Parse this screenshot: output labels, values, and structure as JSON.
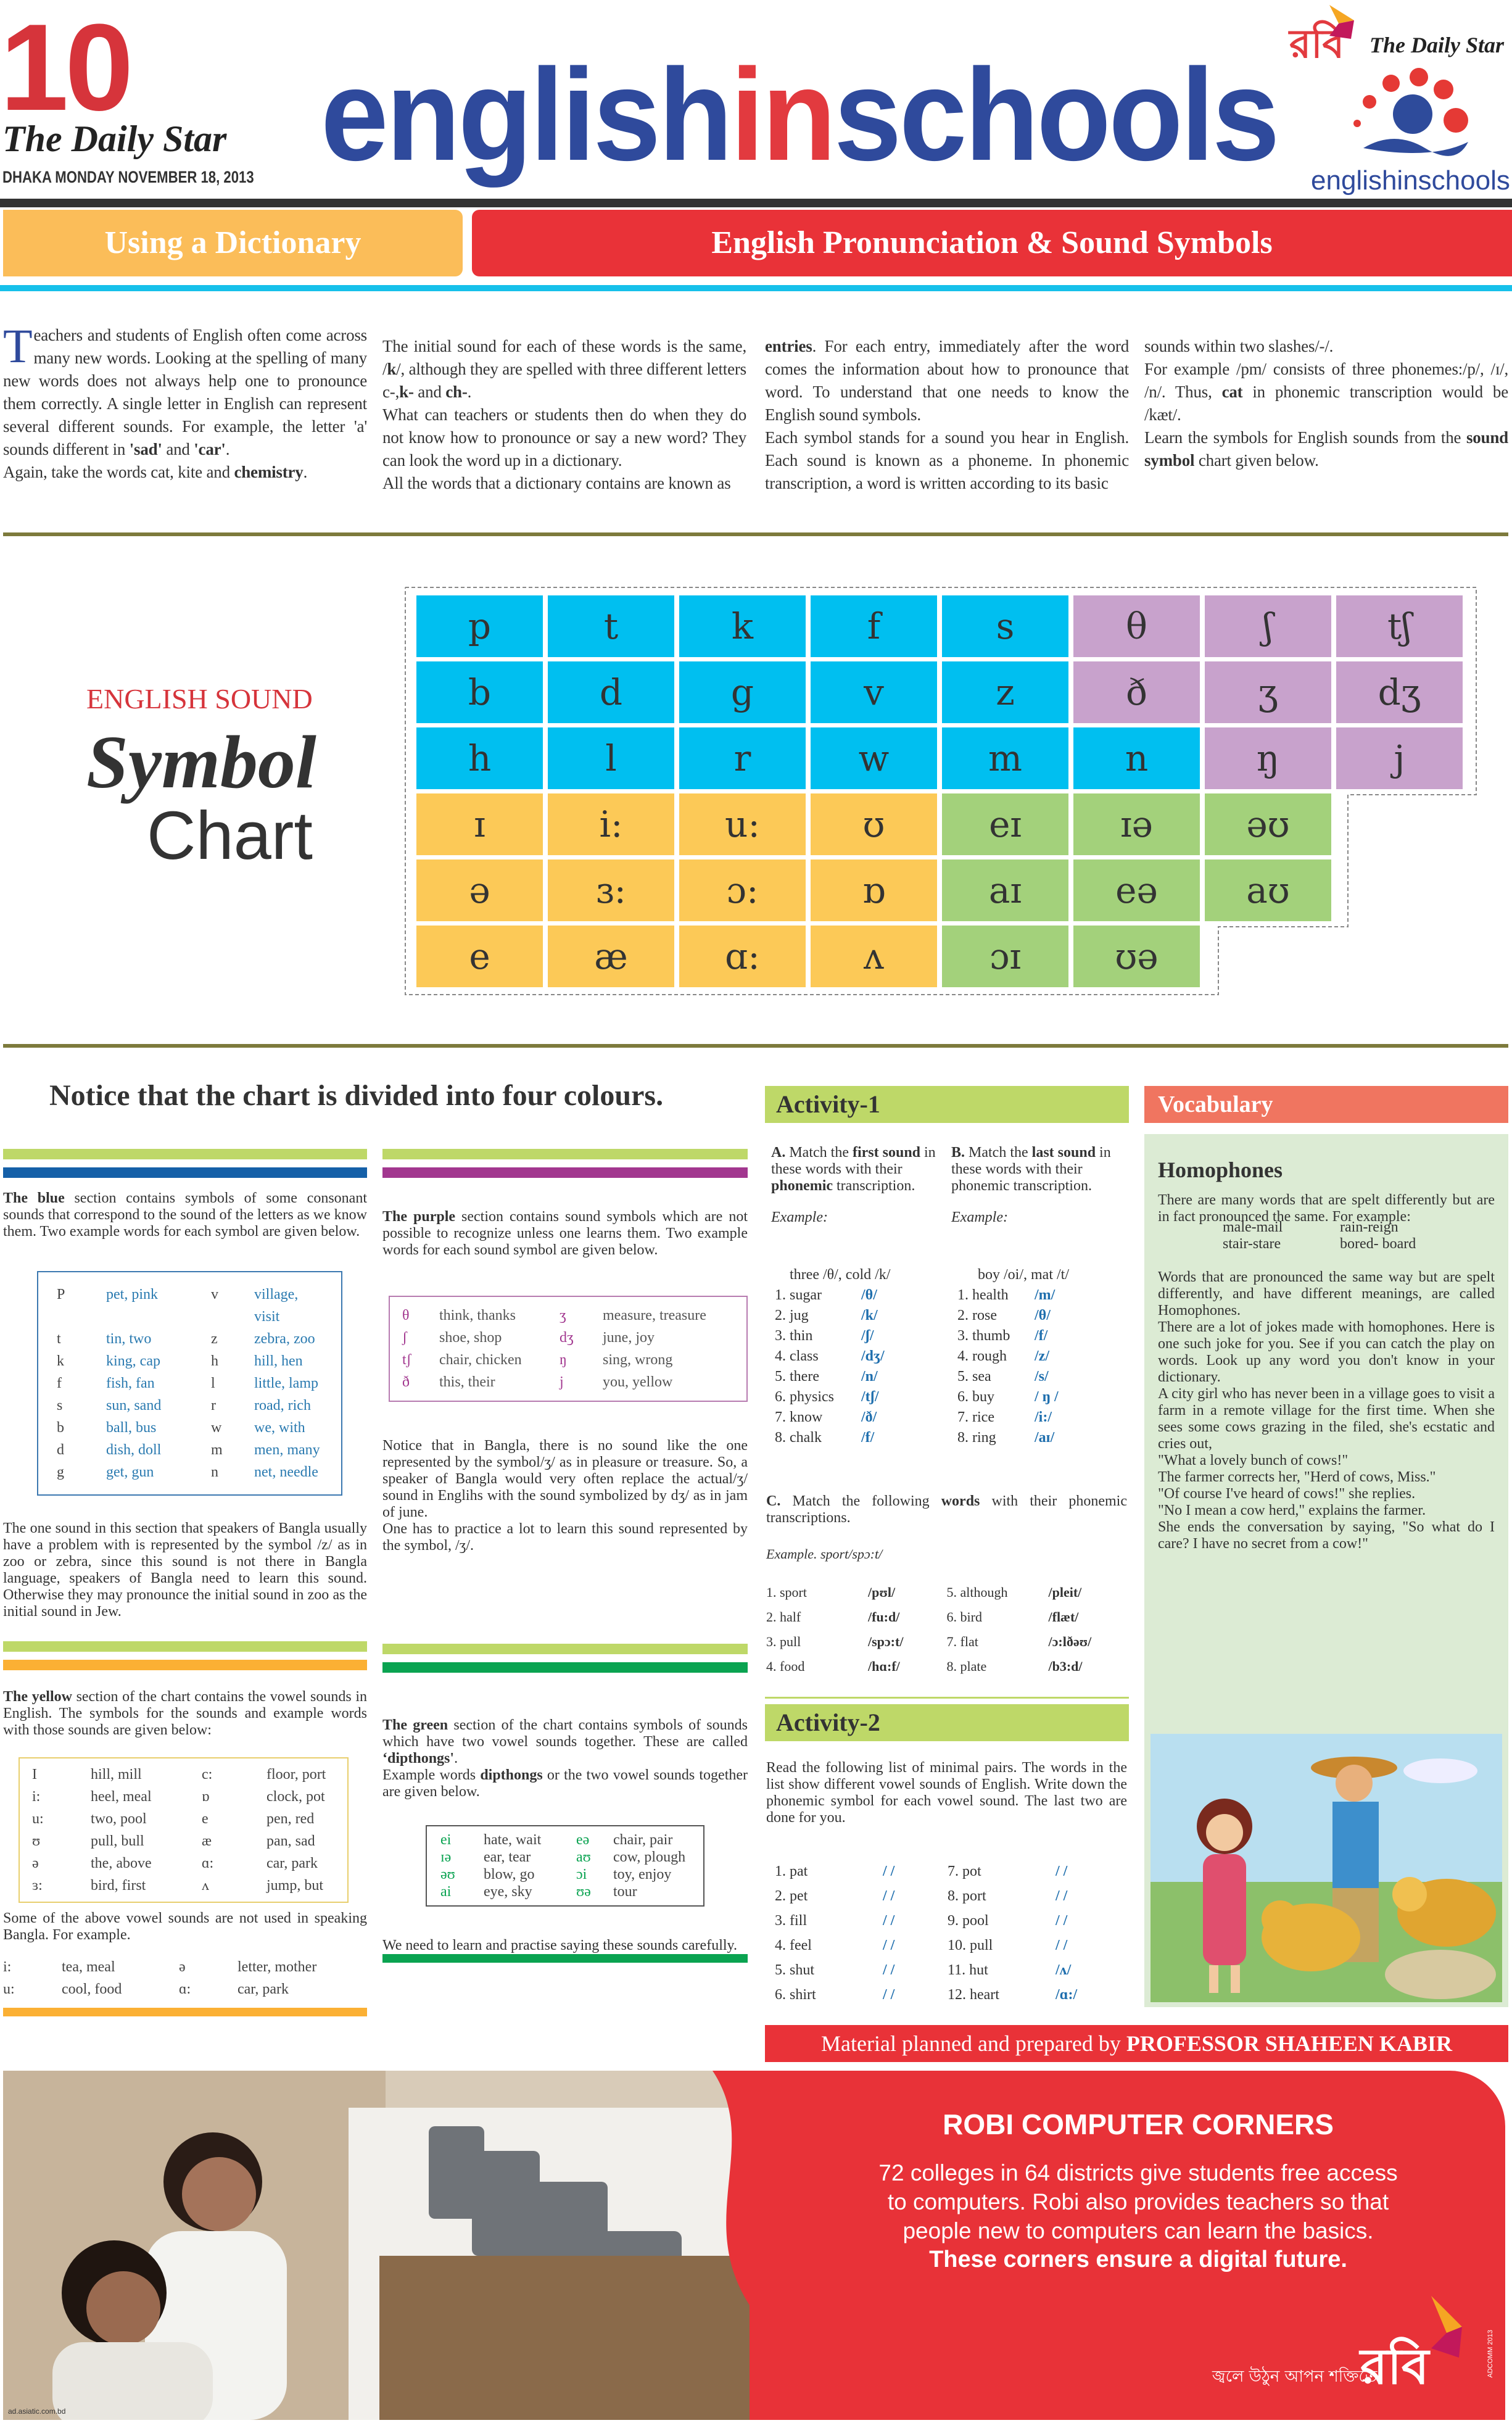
{
  "masthead": {
    "page_number": "10",
    "paper_name": "The Daily Star",
    "dateline": "DHAKA MONDAY NOVEMBER 18, 2013",
    "title_part1": "english",
    "title_part2": "in",
    "title_part3": "schools",
    "right_logo": {
      "robi": "রবি",
      "paper": "The Daily Star",
      "brand": "englishinschools"
    }
  },
  "headers": {
    "left": "Using a Dictionary",
    "right": "English Pronunciation & Sound  Symbols"
  },
  "intro": {
    "dropcap": "T",
    "columns": [
      [
        [
          {
            "t": "eachers and students of English often come across many new words. Looking at the spelling of many new words does not always help one to pronounce them correctly. A single letter in English can represent several different sounds. For example, the letter 'a' sounds different in "
          },
          {
            "t": "'sad'",
            "b": true
          },
          {
            "t": " and "
          },
          {
            "t": "'car'",
            "b": true
          },
          {
            "t": "."
          }
        ],
        [
          {
            "t": "Again, take the words cat, kite and "
          },
          {
            "t": "chemistry",
            "b": true
          },
          {
            "t": "."
          }
        ]
      ],
      [
        [
          {
            "t": "The initial sound for each of these words is the same, /"
          },
          {
            "t": "k",
            "b": true
          },
          {
            "t": "/, although they are spelled with three different letters c-,"
          },
          {
            "t": "k-",
            "b": true
          },
          {
            "t": " and "
          },
          {
            "t": "ch-",
            "b": true
          },
          {
            "t": "."
          }
        ],
        [
          {
            "t": "What can teachers or students then do when they do not know how to pronounce or say a new word? They can look the word up in a dictionary."
          }
        ],
        [
          {
            "t": "All the words that a dictionary contains are known as"
          }
        ]
      ],
      [
        [
          {
            "t": "entries",
            "b": true
          },
          {
            "t": ". For each entry, immediately after the word comes the information about how to pronounce that word. To understand that one needs to know the English sound symbols."
          }
        ],
        [
          {
            "t": "Each symbol stands for a sound you hear in English. Each sound is known as a phoneme. In phonemic transcription, a word is written according to its basic"
          }
        ]
      ],
      [
        [
          {
            "t": "sounds within two slashes/-/."
          }
        ],
        [
          {
            "t": "For example /pm/ consists of three phonemes:/p/, /ɪ/, /n/. Thus, "
          },
          {
            "t": "cat",
            "b": true
          },
          {
            "t": " in phonemic transcription would be /kæt/."
          }
        ],
        [
          {
            "t": "Learn the symbols for English sounds from the "
          },
          {
            "t": "sound symbol",
            "b": true
          },
          {
            "t": " chart given below."
          }
        ]
      ]
    ]
  },
  "chart": {
    "label_top": "ENGLISH SOUND",
    "label_mid": "Symbol",
    "label_bottom": "Chart",
    "colors": {
      "blue": "#00bff0",
      "purple": "#c8a2cc",
      "yellow": "#fcc957",
      "green": "#a3d17b"
    },
    "rows": [
      [
        [
          "p",
          "blue"
        ],
        [
          "t",
          "blue"
        ],
        [
          "k",
          "blue"
        ],
        [
          "f",
          "blue"
        ],
        [
          "s",
          "blue"
        ],
        [
          "θ",
          "purple"
        ],
        [
          "ʃ",
          "purple"
        ],
        [
          "tʃ",
          "purple"
        ]
      ],
      [
        [
          "b",
          "blue"
        ],
        [
          "d",
          "blue"
        ],
        [
          "g",
          "blue"
        ],
        [
          "v",
          "blue"
        ],
        [
          "z",
          "blue"
        ],
        [
          "ð",
          "purple"
        ],
        [
          "ʒ",
          "purple"
        ],
        [
          "dʒ",
          "purple"
        ]
      ],
      [
        [
          "h",
          "blue"
        ],
        [
          "l",
          "blue"
        ],
        [
          "r",
          "blue"
        ],
        [
          "w",
          "blue"
        ],
        [
          "m",
          "blue"
        ],
        [
          "n",
          "blue"
        ],
        [
          "ŋ",
          "purple"
        ],
        [
          "j",
          "purple"
        ]
      ],
      [
        [
          "ɪ",
          "yellow"
        ],
        [
          "i:",
          "yellow"
        ],
        [
          "u:",
          "yellow"
        ],
        [
          "ʊ",
          "yellow"
        ],
        [
          "eɪ",
          "green"
        ],
        [
          "ɪə",
          "green"
        ],
        [
          "əʊ",
          "green"
        ]
      ],
      [
        [
          "ə",
          "yellow"
        ],
        [
          "ɜ:",
          "yellow"
        ],
        [
          "ɔ:",
          "yellow"
        ],
        [
          "ɒ",
          "yellow"
        ],
        [
          "aɪ",
          "green"
        ],
        [
          "eə",
          "green"
        ],
        [
          "aʊ",
          "green"
        ]
      ],
      [
        [
          "e",
          "yellow"
        ],
        [
          "æ",
          "yellow"
        ],
        [
          "ɑ:",
          "yellow"
        ],
        [
          "ʌ",
          "yellow"
        ],
        [
          "ɔɪ",
          "green"
        ],
        [
          "ʊə",
          "green"
        ]
      ]
    ]
  },
  "notice_heading": "Notice that the chart is divided into four colours.",
  "blue_section": {
    "color": "#1560a8",
    "intro": [
      {
        "t": "The blue",
        "b": true
      },
      {
        "t": " section contains symbols of some consonant sounds that correspond to the sound of the letters as we know them. Two example words for each symbol are given below."
      }
    ],
    "table": [
      [
        "P",
        "pet, pink",
        "v",
        "village, visit"
      ],
      [
        "t",
        "tin, two",
        "z",
        "zebra, zoo"
      ],
      [
        "k",
        "king, cap",
        "h",
        "hill, hen"
      ],
      [
        "f",
        "fish, fan",
        "l",
        "little, lamp"
      ],
      [
        "s",
        "sun, sand",
        "r",
        "road, rich"
      ],
      [
        "b",
        "ball, bus",
        "w",
        "we, with"
      ],
      [
        "d",
        "dish, doll",
        "m",
        "men, many"
      ],
      [
        "g",
        "get, gun",
        "n",
        "net, needle"
      ]
    ],
    "after": [
      {
        "t": "The one sound in this section that speakers of  Bangla usually have a problem with is represented by the symbol /z/ as in zoo or zebra, since this sound is not there in Bangla language, speakers of Bangla need to learn this sound. Otherwise they may pronounce the initial sound in zoo as the initial sound in Jew."
      }
    ]
  },
  "purple_section": {
    "color": "#a2378f",
    "intro": [
      {
        "t": "The purple",
        "b": true
      },
      {
        "t": " section contains sound symbols which are not possible to recognize unless one learns them. Two example words for each sound symbol are given below."
      }
    ],
    "table": [
      [
        "θ",
        "think, thanks",
        "ʒ",
        "measure, treasure"
      ],
      [
        "ʃ",
        "shoe, shop",
        "dʒ",
        "june, joy"
      ],
      [
        "tʃ",
        "chair, chicken",
        "ŋ",
        "sing, wrong"
      ],
      [
        "ð",
        "this, their",
        "j",
        "you, yellow"
      ]
    ],
    "after1": [
      {
        "t": "Notice that in Bangla, there is no sound like the one represented by the symbol/ʒ/ as in pleasure or treasure. So, a speaker of Bangla would very often replace the actual/ʒ/ sound in Englihs with the sound symbolized by dʒ/ as in jam of june."
      }
    ],
    "after2": [
      {
        "t": "One has to practice a lot to learn this sound represented by the symbol, /ʒ/."
      }
    ]
  },
  "yellow_section": {
    "color": "#fbb034",
    "intro": [
      {
        "t": "The yellow",
        "b": true
      },
      {
        "t": " section of the chart contains the  vowel sounds in English. The symbols for the sounds and example words with those sounds are given below:"
      }
    ],
    "table": [
      [
        "I",
        "hill, mill",
        "c:",
        "floor, port"
      ],
      [
        "i:",
        "heel, meal",
        "ɒ",
        "clock, pot"
      ],
      [
        "u:",
        "two, pool",
        "e",
        "pen, red"
      ],
      [
        "ʊ",
        "pull, bull",
        "æ",
        "pan, sad"
      ],
      [
        "ə",
        "the, above",
        "ɑ:",
        "car, park"
      ],
      [
        "ɜ:",
        "bird, first",
        "ʌ",
        "jump, but"
      ]
    ],
    "after": [
      {
        "t": "Some of the above vowel sounds are not used in speaking Bangla. For example."
      }
    ],
    "examples": [
      [
        "i:",
        "tea, meal",
        "ə",
        "letter, mother"
      ],
      [
        "u:",
        "cool, food",
        "ɑ:",
        "car, park"
      ]
    ]
  },
  "green_section": {
    "color": "#0aa351",
    "intro": [
      {
        "t": "The green",
        "b": true
      },
      {
        "t": " section of the chart contains symbols of sounds which have two vowel sounds together. These are called "
      },
      {
        "t": "‘dipthongs'",
        "b": true
      },
      {
        "t": "."
      }
    ],
    "intro2": [
      {
        "t": "Example words "
      },
      {
        "t": "dipthongs",
        "b": true
      },
      {
        "t": " or the two vowel sounds together are given below."
      }
    ],
    "table": [
      [
        "ei",
        "hate, wait",
        "eə",
        "chair, pair"
      ],
      [
        "ɪə",
        "ear, tear",
        "aʊ",
        "cow, plough"
      ],
      [
        "əʊ",
        "blow, go",
        "ɔi",
        "toy, enjoy"
      ],
      [
        "ai",
        "eye, sky",
        "ʊə",
        "tour"
      ]
    ],
    "after": [
      {
        "t": "We need to learn and practise saying these sounds carefully."
      }
    ]
  },
  "activity1": {
    "title": "Activity-1",
    "a_instr": [
      {
        "t": "A.",
        "b": true
      },
      {
        "t": " Match the "
      },
      {
        "t": "first sound",
        "b": true
      },
      {
        "t": " in these words with their "
      },
      {
        "t": "phonemic",
        "b": true
      },
      {
        "t": " transcription."
      }
    ],
    "b_instr": [
      {
        "t": "B.",
        "b": true
      },
      {
        "t": " Match the "
      },
      {
        "t": "last sound",
        "b": true
      },
      {
        "t": " in these words with their phonemic transcription."
      }
    ],
    "example_label": "Example:",
    "a_example": "three /θ/, cold /k/",
    "b_example": "boy /oi/, mat /t/",
    "a_items": [
      [
        "1. sugar",
        "/θ/"
      ],
      [
        "2. jug",
        "/k/"
      ],
      [
        "3. thin",
        "/ʃ/"
      ],
      [
        "4. class",
        "/dʒ/"
      ],
      [
        "5. there",
        "/n/"
      ],
      [
        "6. physics",
        "/tʃ/"
      ],
      [
        "7. know",
        "/ð/"
      ],
      [
        "8. chalk",
        "/f/"
      ]
    ],
    "b_items": [
      [
        "1. health",
        "/m/"
      ],
      [
        "2. rose",
        "/θ/"
      ],
      [
        "3. thumb",
        "/f/"
      ],
      [
        "4. rough",
        "/z/"
      ],
      [
        "5. sea",
        "/s/"
      ],
      [
        "6. buy",
        "/ ŋ /"
      ],
      [
        "7. rice",
        "/i:/"
      ],
      [
        "8. ring",
        "/aɪ/"
      ]
    ],
    "c_instr": [
      {
        "t": "C.",
        "b": true
      },
      {
        "t": " Match the following "
      },
      {
        "t": "words",
        "b": true
      },
      {
        "t": " with their phonemic transcriptions."
      }
    ],
    "c_example": "Example. sport/spɔ:t/",
    "c_items": [
      [
        "1. sport",
        "/pʊl/"
      ],
      [
        "2. half",
        "/fu:d/"
      ],
      [
        "3. pull",
        "/spɔ:t/"
      ],
      [
        "4. food",
        "/hɑ:f/"
      ],
      [
        "5. although",
        "/pleit/"
      ],
      [
        "6. bird",
        "/flæt/"
      ],
      [
        "7. flat",
        "/ɔ:lðəʊ/"
      ],
      [
        "8. plate",
        "/b3:d/"
      ]
    ]
  },
  "activity2": {
    "title": "Activity-2",
    "instr": [
      {
        "t": "Read the following list of minimal pairs. The words in the list show different vowel sounds of English. Write down the phonemic symbol for each vowel sound. The last two are done for you."
      }
    ],
    "items": [
      [
        "1. pat",
        "/ /"
      ],
      [
        "2. pet",
        "/ /"
      ],
      [
        "3. fill",
        "/ /"
      ],
      [
        "4. feel",
        "/ /"
      ],
      [
        "5. shut",
        "/ /"
      ],
      [
        "6. shirt",
        "/ /"
      ],
      [
        "7. pot",
        "/  /"
      ],
      [
        "8. port",
        "/  /"
      ],
      [
        "9. pool",
        "/  /"
      ],
      [
        "10. pull",
        "/  /"
      ],
      [
        "11. hut",
        "/ʌ/"
      ],
      [
        "12. heart",
        "/ɑ:/"
      ]
    ]
  },
  "credit": {
    "prefix": "Material planned and prepared by ",
    "name": "PROFESSOR SHAHEEN KABIR"
  },
  "vocabulary": {
    "header": "Vocabulary",
    "title": "Homophones",
    "p1": "There are many words that are spelt differently but are in fact pronounced the same. For example:",
    "pairs": [
      [
        "male-mail",
        "rain-reign"
      ],
      [
        "stair-stare",
        "bored- board"
      ]
    ],
    "p2": "Words that are pronounced the same way but are spelt differently, and have different meanings, are called Homophones.",
    "p3": "There are a lot of jokes made with homophones. Here is one such joke for you. See if you can catch the play on words. Look up any word you don't know in your dictionary.",
    "p4": "A city girl who has never been in a village goes to visit a farm in a remote village for the first time. When she sees some cows grazing in the filed, she's ecstatic and cries out,",
    "p5a": "\"What a lovely bunch of cows!\"",
    "p5b": "The farmer corrects her, \"Herd of cows, Miss.\"",
    "p6a": "\"Of course I've heard of cows!\" she replies.",
    "p6b": "\"No I mean a cow herd,\" explains the farmer.",
    "p7": "She ends the conversation by saying, \"So what do I care? I have no secret from a cow!\""
  },
  "ad": {
    "headline": "ROBI COMPUTER CORNERS",
    "lines": [
      "72 colleges in 64 districts give students free access",
      "to computers. Robi also provides teachers so that",
      "people new to computers can learn the basics."
    ],
    "tagline_bold": "These corners ensure a digital future.",
    "bangla_tagline": "জ্বলে উঠুন আপন শক্তিতে",
    "robi_logo": "রবি",
    "credit_vertical": "ADCOMM 2013",
    "photo_credit": "ad.asiatic.com.bd"
  }
}
